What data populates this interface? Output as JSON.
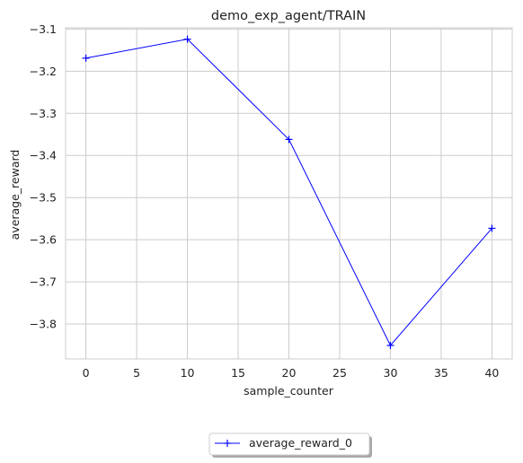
{
  "chart_data": {
    "type": "line",
    "title": "demo_exp_agent/TRAIN",
    "xlabel": "sample_counter",
    "ylabel": "average_reward",
    "xlim": [
      -2,
      42
    ],
    "ylim": [
      -3.883,
      -3.097
    ],
    "xticks": [
      0,
      5,
      10,
      15,
      20,
      25,
      30,
      35,
      40
    ],
    "yticks": [
      -3.1,
      -3.2,
      -3.3,
      -3.4,
      -3.5,
      -3.6,
      -3.7,
      -3.8
    ],
    "xtick_labels": [
      "0",
      "5",
      "10",
      "15",
      "20",
      "25",
      "30",
      "35",
      "40"
    ],
    "ytick_labels": [
      "−3.1",
      "−3.2",
      "−3.3",
      "−3.4",
      "−3.5",
      "−3.6",
      "−3.7",
      "−3.8"
    ],
    "grid": true,
    "legend_position": "below-center",
    "series": [
      {
        "name": "average_reward_0",
        "color": "#0000ff",
        "marker": "+",
        "x": [
          0,
          10,
          20,
          30,
          40
        ],
        "y": [
          -3.169,
          -3.124,
          -3.362,
          -3.851,
          -3.573
        ]
      }
    ]
  }
}
